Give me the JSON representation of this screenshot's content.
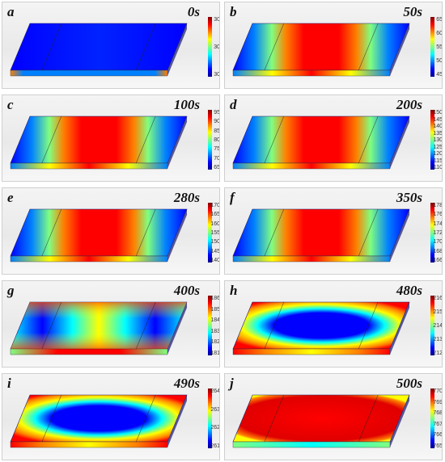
{
  "colormap": [
    "#00008f",
    "#0000ff",
    "#0080ff",
    "#00ffff",
    "#80ff80",
    "#ffff00",
    "#ff8000",
    "#ff0000",
    "#800000"
  ],
  "panels": [
    {
      "label": "a",
      "time": "0s",
      "pattern": "uniform",
      "ticks": [
        "30",
        "30",
        "30"
      ]
    },
    {
      "label": "b",
      "time": "50s",
      "pattern": "hot-center",
      "ticks": [
        "65",
        "60",
        "55",
        "50",
        "45"
      ]
    },
    {
      "label": "c",
      "time": "100s",
      "pattern": "hot-center",
      "ticks": [
        "95",
        "90",
        "85",
        "80",
        "75",
        "70",
        "65"
      ]
    },
    {
      "label": "d",
      "time": "200s",
      "pattern": "hot-center",
      "ticks": [
        "150",
        "145",
        "140",
        "135",
        "130",
        "125",
        "120",
        "115",
        "110"
      ]
    },
    {
      "label": "e",
      "time": "280s",
      "pattern": "hot-center",
      "ticks": [
        "170",
        "165",
        "160",
        "155",
        "150",
        "145",
        "140"
      ]
    },
    {
      "label": "f",
      "time": "350s",
      "pattern": "hot-center",
      "ticks": [
        "178",
        "176",
        "174",
        "172",
        "170",
        "168",
        "166"
      ]
    },
    {
      "label": "g",
      "time": "400s",
      "pattern": "x-shape",
      "ticks": [
        "186",
        "185",
        "184",
        "183",
        "182",
        "181"
      ]
    },
    {
      "label": "h",
      "time": "480s",
      "pattern": "cold-oval",
      "ticks": [
        "216",
        "215",
        "214",
        "213",
        "212"
      ]
    },
    {
      "label": "i",
      "time": "490s",
      "pattern": "cold-oval",
      "ticks": [
        "264",
        "263",
        "262",
        "261"
      ]
    },
    {
      "label": "j",
      "time": "500s",
      "pattern": "hot-uniform",
      "ticks": [
        "770",
        "769",
        "768",
        "767",
        "766",
        "765"
      ]
    }
  ]
}
